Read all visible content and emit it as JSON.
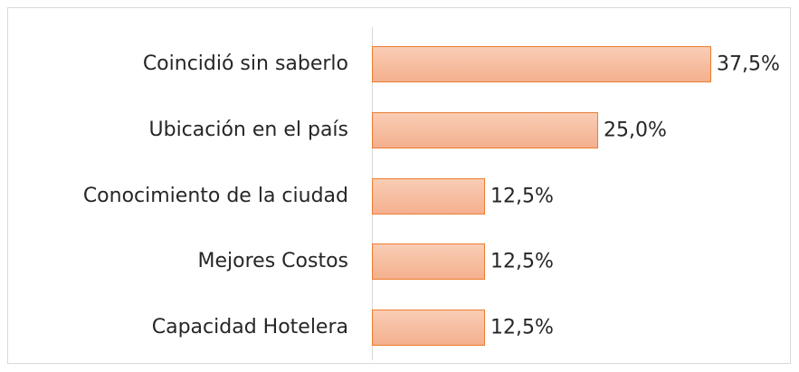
{
  "chart_data": {
    "type": "bar",
    "orientation": "horizontal",
    "categories": [
      "Coincidió sin saberlo",
      "Ubicación en el país",
      "Conocimiento de la ciudad",
      "Mejores Costos",
      "Capacidad Hotelera"
    ],
    "values": [
      37.5,
      25.0,
      12.5,
      12.5,
      12.5
    ],
    "value_labels": [
      "37,5%",
      "25,0%",
      "12,5%",
      "12,5%",
      "12,5%"
    ],
    "color": "#f4b08f"
  }
}
